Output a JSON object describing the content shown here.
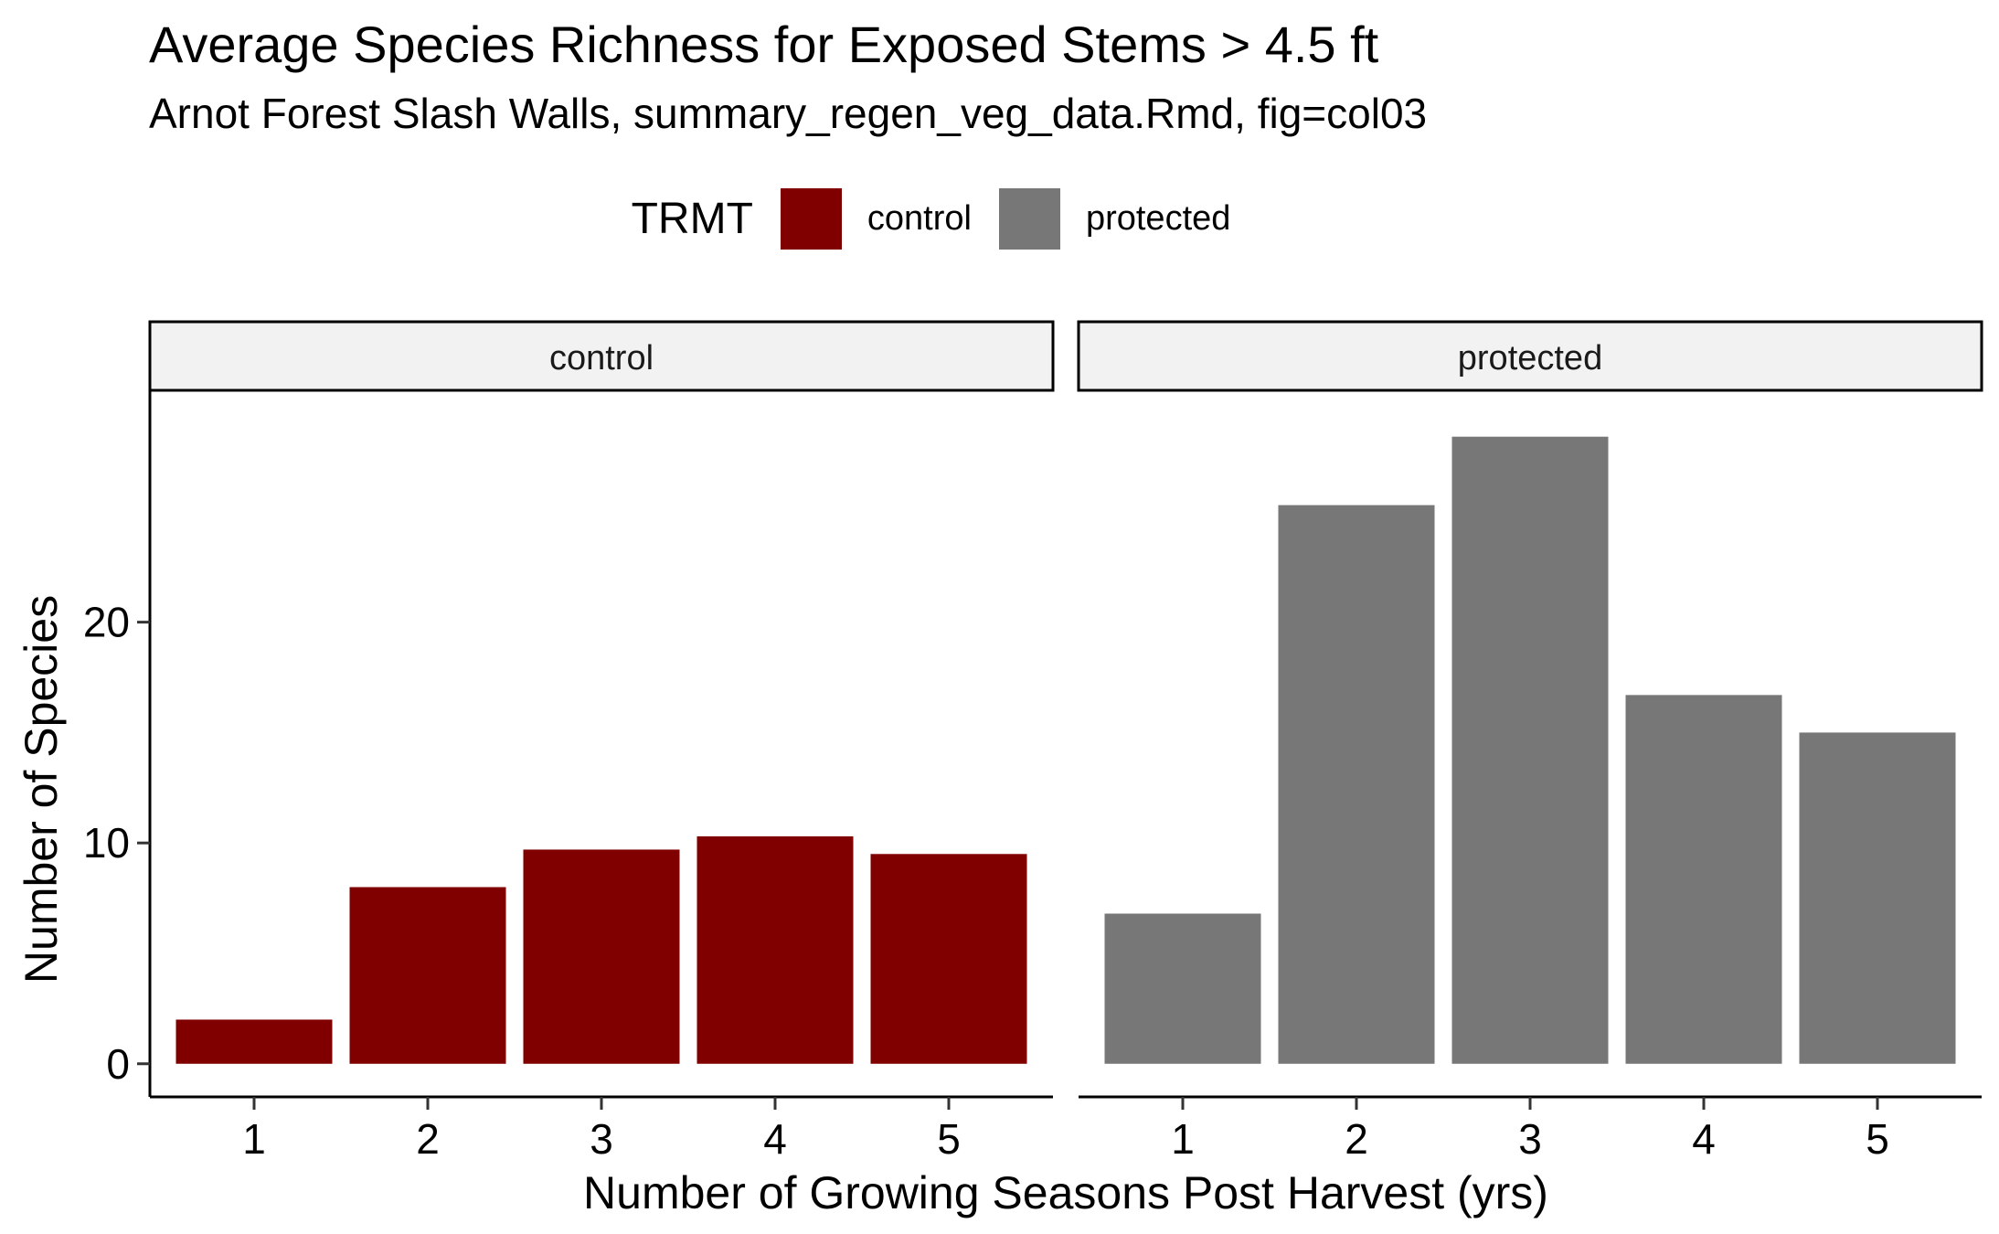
{
  "chart_data": {
    "type": "bar",
    "title": "Average Species Richness for Exposed Stems > 4.5 ft",
    "subtitle": "Arnot Forest Slash Walls, summary_regen_veg_data.Rmd, fig=col03",
    "xlabel": "Number of Growing Seasons Post Harvest (yrs)",
    "ylabel": "Number of Species",
    "categories": [
      "1",
      "2",
      "3",
      "4",
      "5"
    ],
    "yticks": [
      "0",
      "10",
      "20"
    ],
    "ylim": [
      -1.5,
      30.5
    ],
    "grid": false,
    "legend": {
      "title": "TRMT",
      "placement": "top",
      "entries": [
        "control",
        "protected"
      ]
    },
    "facets": [
      {
        "name": "control",
        "color": "#800000",
        "values": [
          2.0,
          8.0,
          9.7,
          10.3,
          9.5
        ]
      },
      {
        "name": "protected",
        "color": "#777777",
        "values": [
          6.8,
          25.3,
          28.4,
          16.7,
          15.0
        ]
      }
    ]
  }
}
